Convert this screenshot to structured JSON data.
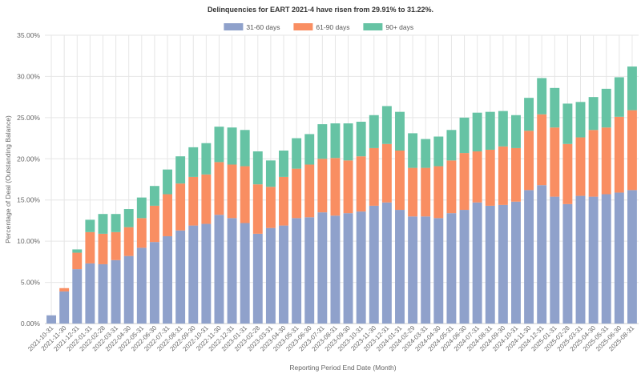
{
  "chart_data": {
    "type": "bar",
    "stacked": true,
    "title": "Delinquencies for EART 2021-4 have risen from 29.91% to 31.22%.",
    "xlabel": "Reporting Period End Date (Month)",
    "ylabel": "Percentage of Deal (Outstanding Balance)",
    "ylim": [
      0,
      35
    ],
    "yticks": [
      "0.00%",
      "5.00%",
      "10.00%",
      "15.00%",
      "20.00%",
      "25.00%",
      "30.00%",
      "35.00%"
    ],
    "grid": true,
    "legend_position": "top-center",
    "categories": [
      "2021-10-31",
      "2021-11-30",
      "2021-12-31",
      "2022-01-31",
      "2022-02-28",
      "2022-03-31",
      "2022-04-30",
      "2022-05-31",
      "2022-06-30",
      "2022-07-31",
      "2022-08-31",
      "2022-09-30",
      "2022-10-31",
      "2022-11-30",
      "2022-12-31",
      "2023-01-31",
      "2023-02-28",
      "2023-03-31",
      "2023-04-30",
      "2023-05-31",
      "2023-06-30",
      "2023-07-31",
      "2023-08-31",
      "2023-09-30",
      "2023-10-31",
      "2023-11-30",
      "2023-12-31",
      "2024-01-31",
      "2024-02-29",
      "2024-03-31",
      "2024-04-30",
      "2024-05-31",
      "2024-06-30",
      "2024-07-31",
      "2024-08-31",
      "2024-09-30",
      "2024-10-31",
      "2024-11-30",
      "2024-12-31",
      "2025-01-31",
      "2025-02-28",
      "2025-03-31",
      "2025-04-30",
      "2025-05-31",
      "2025-06-30",
      "2025-08-31"
    ],
    "series": [
      {
        "name": "31-60 days",
        "color": "#8fa1cb",
        "values": [
          1.0,
          3.9,
          6.6,
          7.3,
          7.2,
          7.7,
          8.2,
          9.2,
          9.9,
          10.6,
          11.3,
          11.9,
          12.1,
          13.2,
          12.8,
          12.2,
          10.9,
          11.6,
          11.9,
          12.8,
          12.9,
          13.5,
          13.1,
          13.4,
          13.6,
          14.3,
          14.7,
          13.8,
          13.0,
          13.0,
          12.8,
          13.4,
          13.8,
          14.7,
          14.3,
          14.4,
          14.8,
          16.2,
          16.8,
          15.4,
          14.5,
          15.5,
          15.4,
          15.7,
          15.9,
          16.2
        ]
      },
      {
        "name": "61-90 days",
        "color": "#f98e62",
        "values": [
          0.0,
          0.4,
          2.0,
          3.8,
          3.7,
          3.4,
          3.5,
          3.6,
          4.4,
          5.1,
          5.7,
          5.9,
          6.0,
          6.4,
          6.5,
          6.9,
          6.0,
          5.0,
          5.9,
          6.0,
          6.4,
          6.5,
          7.0,
          6.4,
          6.7,
          7.0,
          7.1,
          7.2,
          5.9,
          5.9,
          6.3,
          6.4,
          6.9,
          6.2,
          6.8,
          7.1,
          6.5,
          7.2,
          8.6,
          8.4,
          7.3,
          7.1,
          8.1,
          8.1,
          9.2,
          9.7
        ]
      },
      {
        "name": "90+ days",
        "color": "#66c3a4",
        "values": [
          0.0,
          0.0,
          0.4,
          1.5,
          2.4,
          2.2,
          2.2,
          2.5,
          2.4,
          3.0,
          3.3,
          3.6,
          3.8,
          4.3,
          4.5,
          4.4,
          4.0,
          3.2,
          3.2,
          3.7,
          3.7,
          4.2,
          4.2,
          4.5,
          4.2,
          4.0,
          4.6,
          4.7,
          4.2,
          3.5,
          3.6,
          3.7,
          4.3,
          4.7,
          4.6,
          4.3,
          4.0,
          4.0,
          4.4,
          4.8,
          4.9,
          4.3,
          4.0,
          4.7,
          4.8,
          5.3
        ]
      }
    ]
  }
}
